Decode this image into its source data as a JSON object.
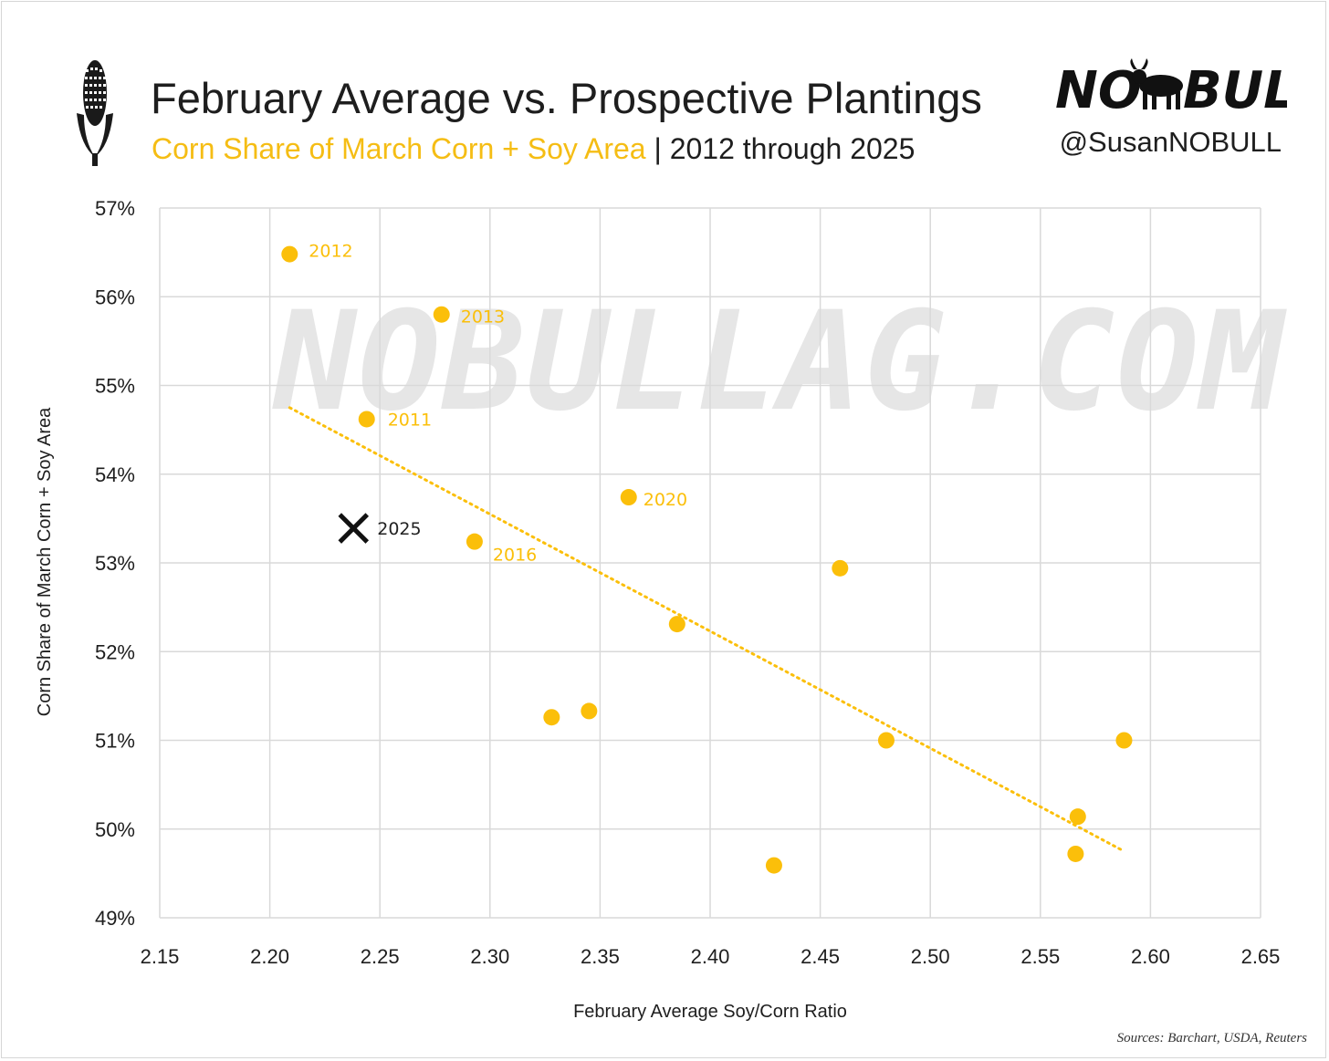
{
  "header": {
    "title": "February Average vs. Prospective Plantings",
    "subtitle_accent": "Corn Share of March Corn + Soy Area",
    "subtitle_sep": " | ",
    "subtitle_range": "2012 through 2025",
    "logo_text": "NO BULL",
    "handle": "@SusanNOBULL",
    "icon": "corn-icon"
  },
  "watermark": "NOBULLAG.COM",
  "source": "Sources: Barchart, USDA, Reuters",
  "colors": {
    "accent": "#f5bd14",
    "point": "#fbbf0a",
    "marker_2025": "#111111",
    "grid": "#d9d9d9",
    "text": "#1e1e1e"
  },
  "chart_data": {
    "type": "scatter",
    "xlabel": "February Average Soy/Corn Ratio",
    "ylabel": "Corn Share of March Corn + Soy Area",
    "xlim": [
      2.15,
      2.65
    ],
    "ylim": [
      0.49,
      0.57
    ],
    "x_ticks": [
      "2.15",
      "2.20",
      "2.25",
      "2.30",
      "2.35",
      "2.40",
      "2.45",
      "2.50",
      "2.55",
      "2.60",
      "2.65"
    ],
    "y_ticks": [
      "49%",
      "50%",
      "51%",
      "52%",
      "53%",
      "54%",
      "55%",
      "56%",
      "57%"
    ],
    "grid": true,
    "points": [
      {
        "x": 2.209,
        "y": 0.5648,
        "label": "2012"
      },
      {
        "x": 2.278,
        "y": 0.558,
        "label": "2013"
      },
      {
        "x": 2.244,
        "y": 0.5462,
        "label": "2011"
      },
      {
        "x": 2.363,
        "y": 0.5374,
        "label": "2020"
      },
      {
        "x": 2.293,
        "y": 0.5324,
        "label": "2016"
      },
      {
        "x": 2.459,
        "y": 0.5294,
        "label": ""
      },
      {
        "x": 2.385,
        "y": 0.5231,
        "label": ""
      },
      {
        "x": 2.328,
        "y": 0.5126,
        "label": ""
      },
      {
        "x": 2.345,
        "y": 0.5133,
        "label": ""
      },
      {
        "x": 2.48,
        "y": 0.51,
        "label": ""
      },
      {
        "x": 2.588,
        "y": 0.51,
        "label": ""
      },
      {
        "x": 2.567,
        "y": 0.5014,
        "label": ""
      },
      {
        "x": 2.566,
        "y": 0.4972,
        "label": ""
      },
      {
        "x": 2.429,
        "y": 0.4959,
        "label": ""
      }
    ],
    "highlight": {
      "x": 2.238,
      "y": 0.5339,
      "label": "2025",
      "marker": "x"
    },
    "trendline": {
      "style": "dotted",
      "x": [
        2.209,
        2.588
      ],
      "y": [
        0.5475,
        0.4975
      ]
    }
  }
}
